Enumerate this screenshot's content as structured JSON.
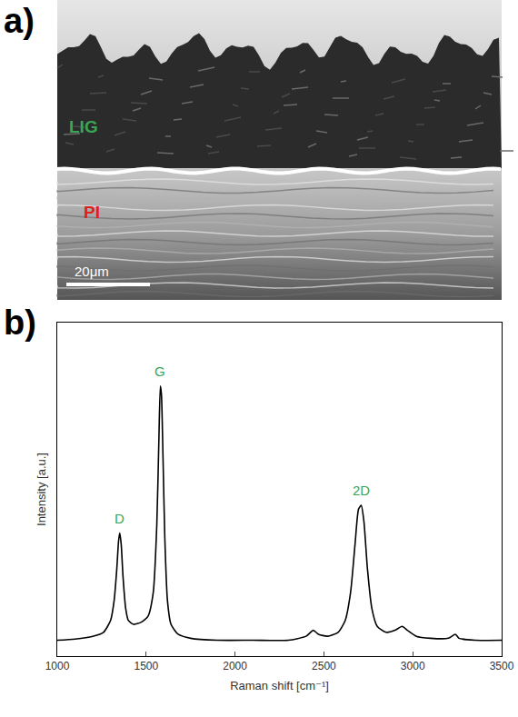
{
  "chart_data": {
    "type": "line",
    "panel_label": "b)",
    "x_label": "Raman shift [cm⁻¹]",
    "y_label": "Intensity [a.u.]",
    "x": [
      1000,
      1100,
      1200,
      1260,
      1300,
      1320,
      1335,
      1345,
      1352,
      1360,
      1370,
      1385,
      1400,
      1430,
      1470,
      1510,
      1540,
      1560,
      1572,
      1580,
      1586,
      1595,
      1605,
      1620,
      1640,
      1680,
      1750,
      1900,
      2100,
      2300,
      2400,
      2440,
      2470,
      2520,
      2580,
      2620,
      2650,
      2675,
      2695,
      2710,
      2725,
      2745,
      2770,
      2800,
      2850,
      2900,
      2940,
      2970,
      3020,
      3100,
      3200,
      3240,
      3260,
      3350,
      3500
    ],
    "series": [
      {
        "name": "LIG",
        "color": "#000000",
        "values": [
          4,
          4.3,
          5,
          6,
          9,
          14,
          22,
          29,
          31,
          28,
          20,
          12,
          9,
          8,
          8.5,
          10,
          16,
          33,
          55,
          68,
          66,
          50,
          30,
          14,
          8,
          5.5,
          4.5,
          4,
          4,
          4,
          5,
          6.5,
          5.5,
          5,
          6,
          9,
          16,
          28,
          37,
          38,
          34,
          22,
          12,
          7.5,
          6,
          6.5,
          7.5,
          6.5,
          5,
          4.5,
          4.5,
          5.5,
          4.5,
          4,
          4
        ]
      }
    ],
    "annotations": [
      {
        "text": "D",
        "x": 1352,
        "y": 31
      },
      {
        "text": "G",
        "x": 1580,
        "y": 68
      },
      {
        "text": "2D",
        "x": 2710,
        "y": 38
      }
    ],
    "xlim": [
      1000,
      3500
    ],
    "xticks": [
      1000,
      1500,
      2000,
      2500,
      3000,
      3500
    ],
    "ylim": [
      0,
      84
    ],
    "tick_labels": "x",
    "grid": false
  },
  "micrograph": {
    "panel_label": "a)",
    "labels": [
      {
        "text": "LIG",
        "color": "#3aa655"
      },
      {
        "text": "PI",
        "color": "#e0201b"
      }
    ],
    "scale_bar": "20μm"
  }
}
